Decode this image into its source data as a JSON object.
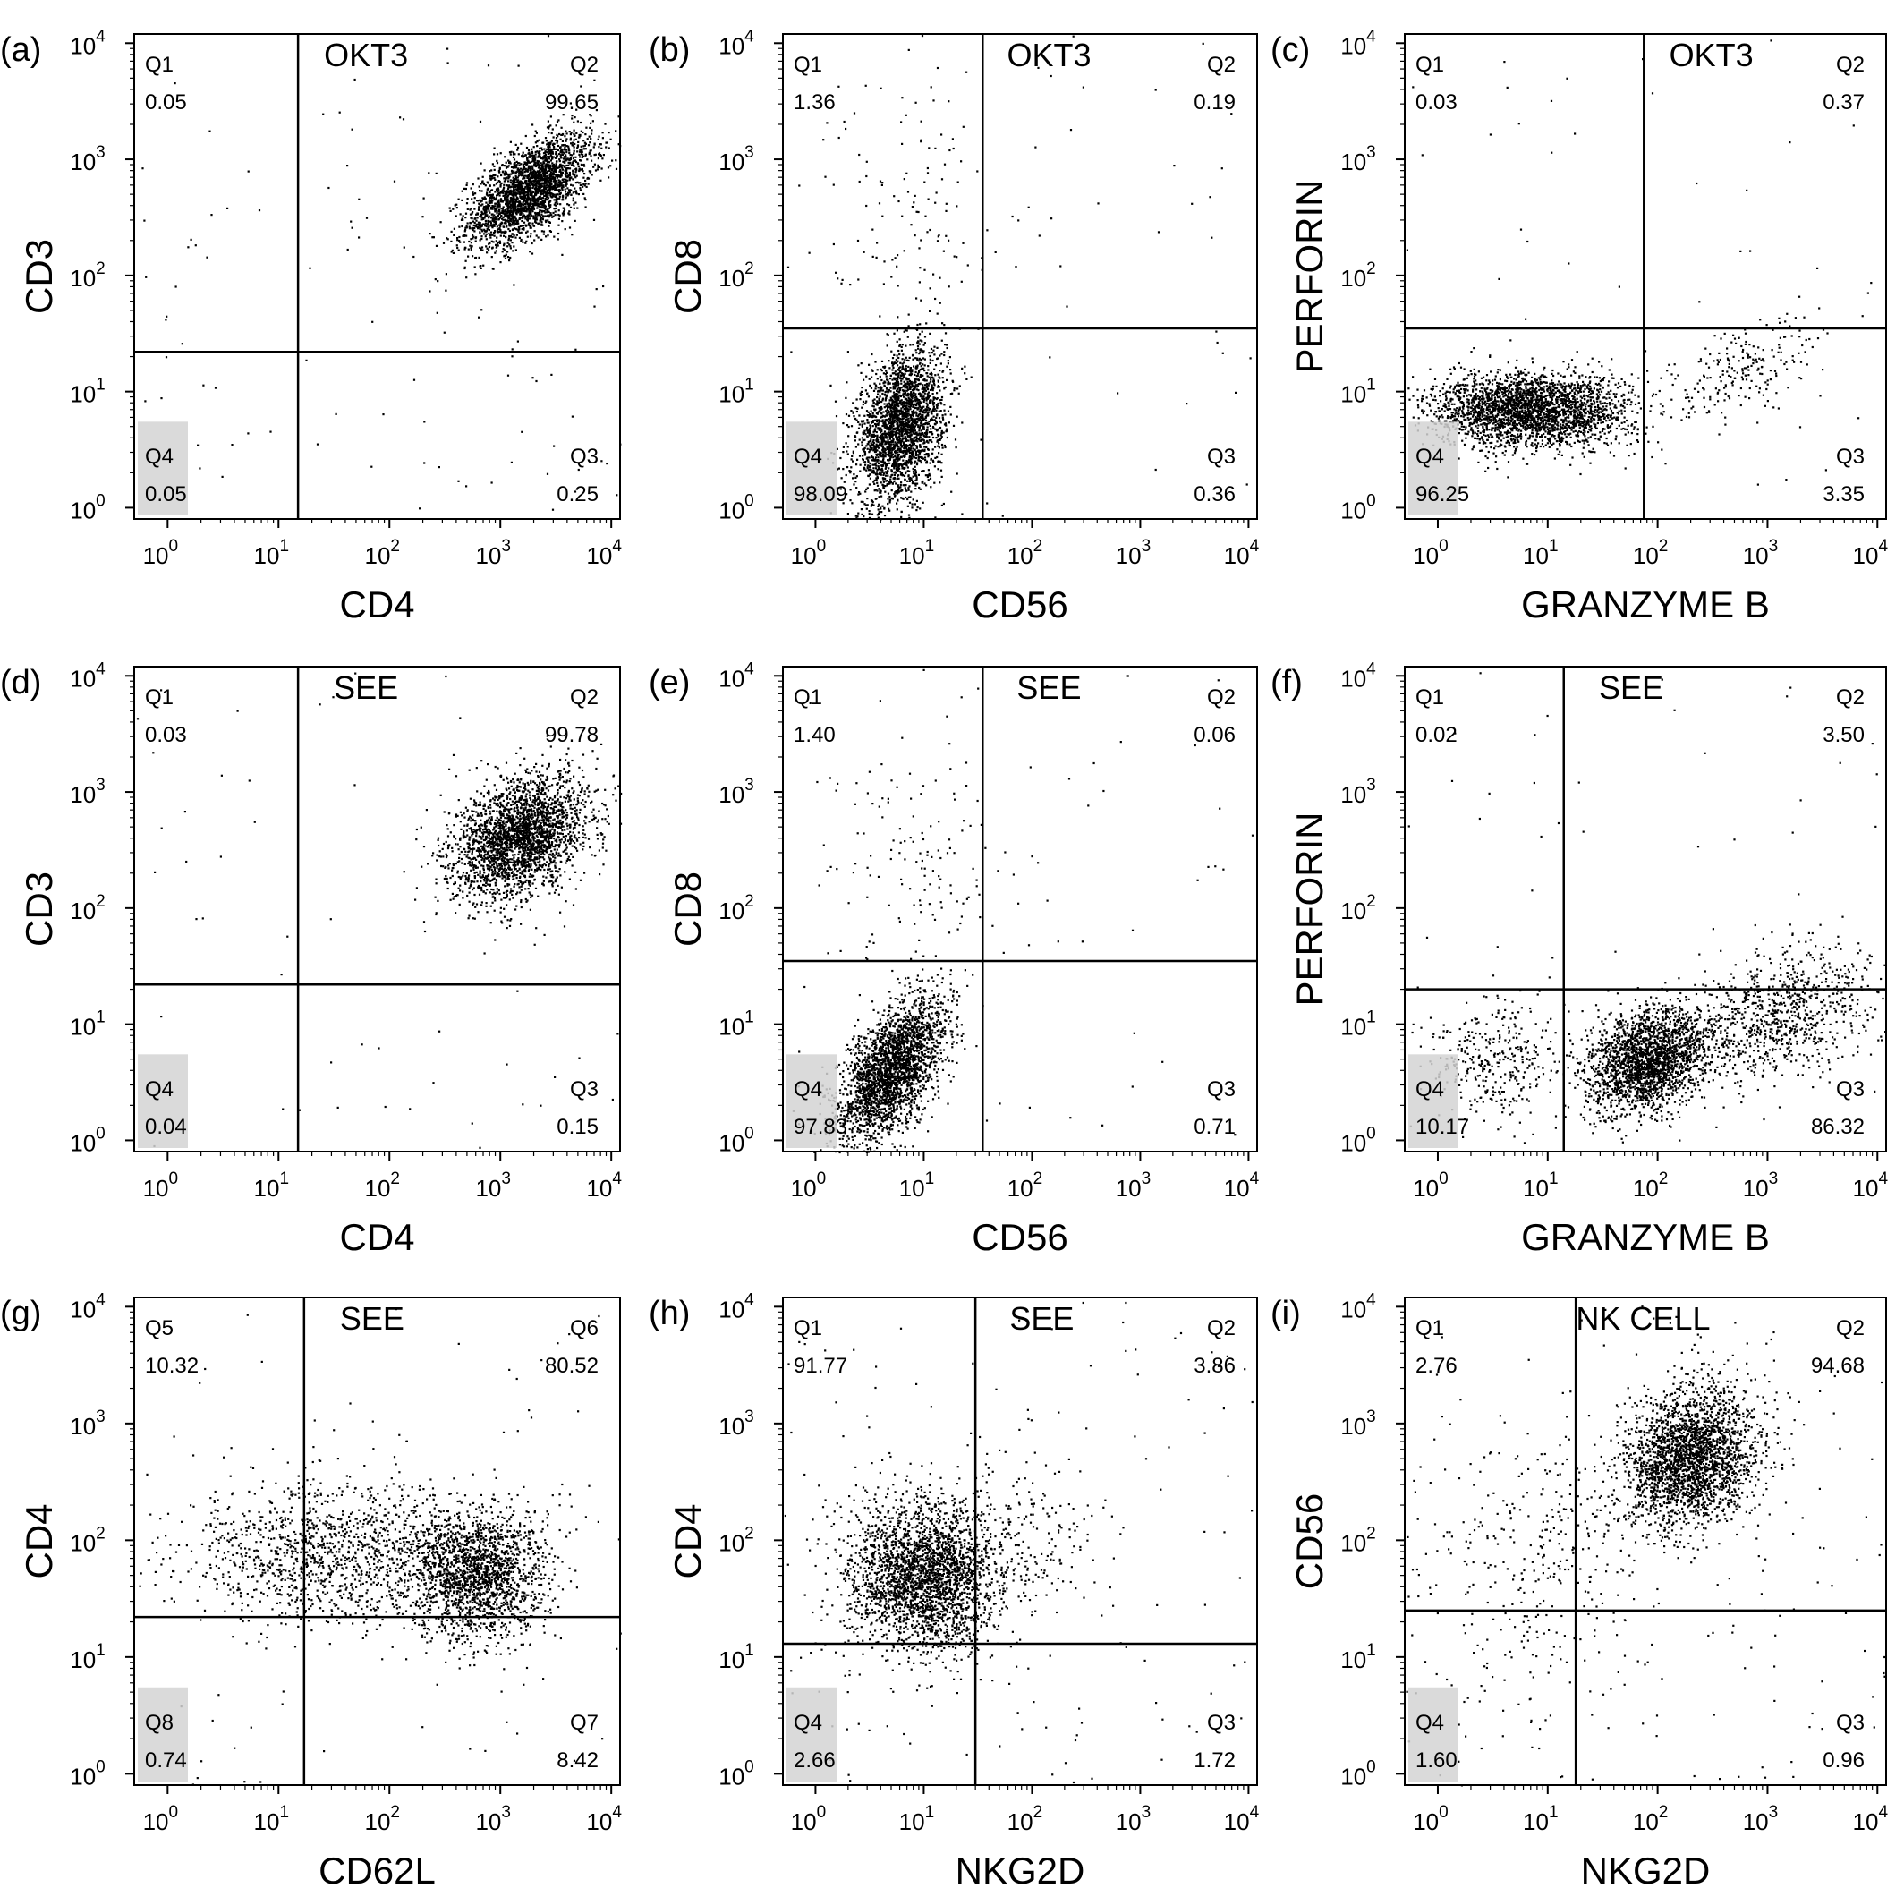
{
  "chart_data": [
    {
      "type": "scatter",
      "panel_label": "(a)",
      "condition": "OKT3",
      "xlabel": "CD4",
      "ylabel": "CD3",
      "xlim": [
        0.5,
        12000
      ],
      "ylim": [
        0.8,
        12000
      ],
      "scale": "log",
      "gate": {
        "x": 15,
        "y": 22
      },
      "quadrants": [
        {
          "name": "Q1",
          "value": "0.05",
          "pos": "top-left"
        },
        {
          "name": "Q2",
          "value": "99.65",
          "pos": "top-right"
        },
        {
          "name": "Q4",
          "value": "0.05",
          "pos": "bottom-left"
        },
        {
          "name": "Q3",
          "value": "0.25",
          "pos": "bottom-right"
        }
      ],
      "clusters": [
        {
          "cx": 1800,
          "cy": 550,
          "sx": 0.28,
          "sy": 0.24,
          "rho": 0.6,
          "n": 2600
        }
      ],
      "background_points": 110
    },
    {
      "type": "scatter",
      "panel_label": "(b)",
      "condition": "OKT3",
      "xlabel": "CD56",
      "ylabel": "CD8",
      "xlim": [
        0.5,
        12000
      ],
      "ylim": [
        0.8,
        12000
      ],
      "scale": "log",
      "gate": {
        "x": 35,
        "y": 35
      },
      "quadrants": [
        {
          "name": "Q1",
          "value": "1.36",
          "pos": "top-left"
        },
        {
          "name": "Q2",
          "value": "0.19",
          "pos": "top-right"
        },
        {
          "name": "Q4",
          "value": "98.09",
          "pos": "bottom-left"
        },
        {
          "name": "Q3",
          "value": "0.36",
          "pos": "bottom-right"
        }
      ],
      "clusters": [
        {
          "cx": 6,
          "cy": 5,
          "sx": 0.2,
          "sy": 0.33,
          "rho": 0.3,
          "n": 2600
        },
        {
          "cx": 8,
          "cy": 400,
          "sx": 0.4,
          "sy": 0.5,
          "rho": 0,
          "n": 110
        }
      ],
      "background_points": 70
    },
    {
      "type": "scatter",
      "panel_label": "(c)",
      "condition": "OKT3",
      "xlabel": "GRANZYME B",
      "ylabel": "PERFORIN",
      "xlim": [
        0.5,
        12000
      ],
      "ylim": [
        0.8,
        12000
      ],
      "scale": "log",
      "gate": {
        "x": 75,
        "y": 35
      },
      "quadrants": [
        {
          "name": "Q1",
          "value": "0.03",
          "pos": "top-left"
        },
        {
          "name": "Q2",
          "value": "0.37",
          "pos": "top-right"
        },
        {
          "name": "Q4",
          "value": "96.25",
          "pos": "bottom-left"
        },
        {
          "name": "Q3",
          "value": "3.35",
          "pos": "bottom-right"
        }
      ],
      "clusters": [
        {
          "cx": 7,
          "cy": 7,
          "sx": 0.45,
          "sy": 0.16,
          "rho": 0,
          "n": 2700
        },
        {
          "cx": 600,
          "cy": 15,
          "sx": 0.35,
          "sy": 0.22,
          "rho": 0.5,
          "n": 220
        }
      ],
      "background_points": 40
    },
    {
      "type": "scatter",
      "panel_label": "(d)",
      "condition": "SEE",
      "xlabel": "CD4",
      "ylabel": "CD3",
      "xlim": [
        0.5,
        12000
      ],
      "ylim": [
        0.8,
        12000
      ],
      "scale": "log",
      "gate": {
        "x": 15,
        "y": 22
      },
      "quadrants": [
        {
          "name": "Q1",
          "value": "0.03",
          "pos": "top-left"
        },
        {
          "name": "Q2",
          "value": "99.78",
          "pos": "top-right"
        },
        {
          "name": "Q4",
          "value": "0.04",
          "pos": "bottom-left"
        },
        {
          "name": "Q3",
          "value": "0.15",
          "pos": "bottom-right"
        }
      ],
      "clusters": [
        {
          "cx": 1500,
          "cy": 420,
          "sx": 0.3,
          "sy": 0.26,
          "rho": 0.35,
          "n": 2600
        }
      ],
      "background_points": 60
    },
    {
      "type": "scatter",
      "panel_label": "(e)",
      "condition": "SEE",
      "xlabel": "CD56",
      "ylabel": "CD8",
      "xlim": [
        0.5,
        12000
      ],
      "ylim": [
        0.8,
        12000
      ],
      "scale": "log",
      "gate": {
        "x": 35,
        "y": 35
      },
      "quadrants": [
        {
          "name": "Q1",
          "value": "1.40",
          "pos": "top-left"
        },
        {
          "name": "Q2",
          "value": "0.06",
          "pos": "top-right"
        },
        {
          "name": "Q4",
          "value": "97.83",
          "pos": "bottom-left"
        },
        {
          "name": "Q3",
          "value": "0.71",
          "pos": "bottom-right"
        }
      ],
      "clusters": [
        {
          "cx": 5,
          "cy": 4,
          "sx": 0.25,
          "sy": 0.32,
          "rho": 0.6,
          "n": 2600
        },
        {
          "cx": 10,
          "cy": 250,
          "sx": 0.35,
          "sy": 0.5,
          "rho": 0,
          "n": 120
        }
      ],
      "background_points": 70
    },
    {
      "type": "scatter",
      "panel_label": "(f)",
      "condition": "SEE",
      "xlabel": "GRANZYME B",
      "ylabel": "PERFORIN",
      "xlim": [
        0.5,
        12000
      ],
      "ylim": [
        0.8,
        12000
      ],
      "scale": "log",
      "gate": {
        "x": 14,
        "y": 20
      },
      "quadrants": [
        {
          "name": "Q1",
          "value": "0.02",
          "pos": "top-left"
        },
        {
          "name": "Q2",
          "value": "3.50",
          "pos": "top-right"
        },
        {
          "name": "Q4",
          "value": "10.17",
          "pos": "bottom-left"
        },
        {
          "name": "Q3",
          "value": "86.32",
          "pos": "bottom-right"
        }
      ],
      "clusters": [
        {
          "cx": 80,
          "cy": 5,
          "sx": 0.28,
          "sy": 0.22,
          "rho": 0.3,
          "n": 2200
        },
        {
          "cx": 1200,
          "cy": 12,
          "sx": 0.45,
          "sy": 0.3,
          "rho": 0.4,
          "n": 900
        },
        {
          "cx": 3,
          "cy": 5,
          "sx": 0.3,
          "sy": 0.25,
          "rho": 0,
          "n": 350
        }
      ],
      "background_points": 60
    },
    {
      "type": "scatter",
      "panel_label": "(g)",
      "condition": "SEE",
      "xlabel": "CD62L",
      "ylabel": "CD4",
      "xlim": [
        0.5,
        12000
      ],
      "ylim": [
        0.8,
        12000
      ],
      "scale": "log",
      "gate": {
        "x": 17,
        "y": 22
      },
      "quadrants": [
        {
          "name": "Q5",
          "value": "10.32",
          "pos": "top-left"
        },
        {
          "name": "Q6",
          "value": "80.52",
          "pos": "top-right"
        },
        {
          "name": "Q8",
          "value": "0.74",
          "pos": "bottom-left"
        },
        {
          "name": "Q7",
          "value": "8.42",
          "pos": "bottom-right"
        }
      ],
      "clusters": [
        {
          "cx": 600,
          "cy": 50,
          "sx": 0.3,
          "sy": 0.28,
          "rho": 0,
          "n": 1800
        },
        {
          "cx": 30,
          "cy": 80,
          "sx": 0.65,
          "sy": 0.3,
          "rho": 0,
          "n": 1300
        }
      ],
      "background_points": 90
    },
    {
      "type": "scatter",
      "panel_label": "(h)",
      "condition": "SEE",
      "xlabel": "NKG2D",
      "ylabel": "CD4",
      "xlim": [
        0.5,
        12000
      ],
      "ylim": [
        0.8,
        12000
      ],
      "scale": "log",
      "gate": {
        "x": 30,
        "y": 13
      },
      "quadrants": [
        {
          "name": "Q1",
          "value": "91.77",
          "pos": "top-left"
        },
        {
          "name": "Q2",
          "value": "3.86",
          "pos": "top-right"
        },
        {
          "name": "Q4",
          "value": "2.66",
          "pos": "bottom-left"
        },
        {
          "name": "Q3",
          "value": "1.72",
          "pos": "bottom-right"
        }
      ],
      "clusters": [
        {
          "cx": 10,
          "cy": 50,
          "sx": 0.35,
          "sy": 0.32,
          "rho": 0,
          "n": 2700
        },
        {
          "cx": 100,
          "cy": 100,
          "sx": 0.35,
          "sy": 0.3,
          "rho": 0,
          "n": 160
        }
      ],
      "background_points": 140
    },
    {
      "type": "scatter",
      "panel_label": "(i)",
      "condition": "NK CELL",
      "xlabel": "NKG2D",
      "ylabel": "CD56",
      "xlim": [
        0.5,
        12000
      ],
      "ylim": [
        0.8,
        12000
      ],
      "scale": "log",
      "gate": {
        "x": 18,
        "y": 25
      },
      "quadrants": [
        {
          "name": "Q1",
          "value": "2.76",
          "pos": "top-left"
        },
        {
          "name": "Q2",
          "value": "94.68",
          "pos": "top-right"
        },
        {
          "name": "Q4",
          "value": "1.60",
          "pos": "bottom-left"
        },
        {
          "name": "Q3",
          "value": "0.96",
          "pos": "bottom-right"
        }
      ],
      "clusters": [
        {
          "cx": 200,
          "cy": 500,
          "sx": 0.3,
          "sy": 0.3,
          "rho": 0.2,
          "n": 2500
        },
        {
          "cx": 8,
          "cy": 60,
          "sx": 0.5,
          "sy": 0.6,
          "rho": 0,
          "n": 300
        }
      ],
      "background_points": 180
    }
  ]
}
